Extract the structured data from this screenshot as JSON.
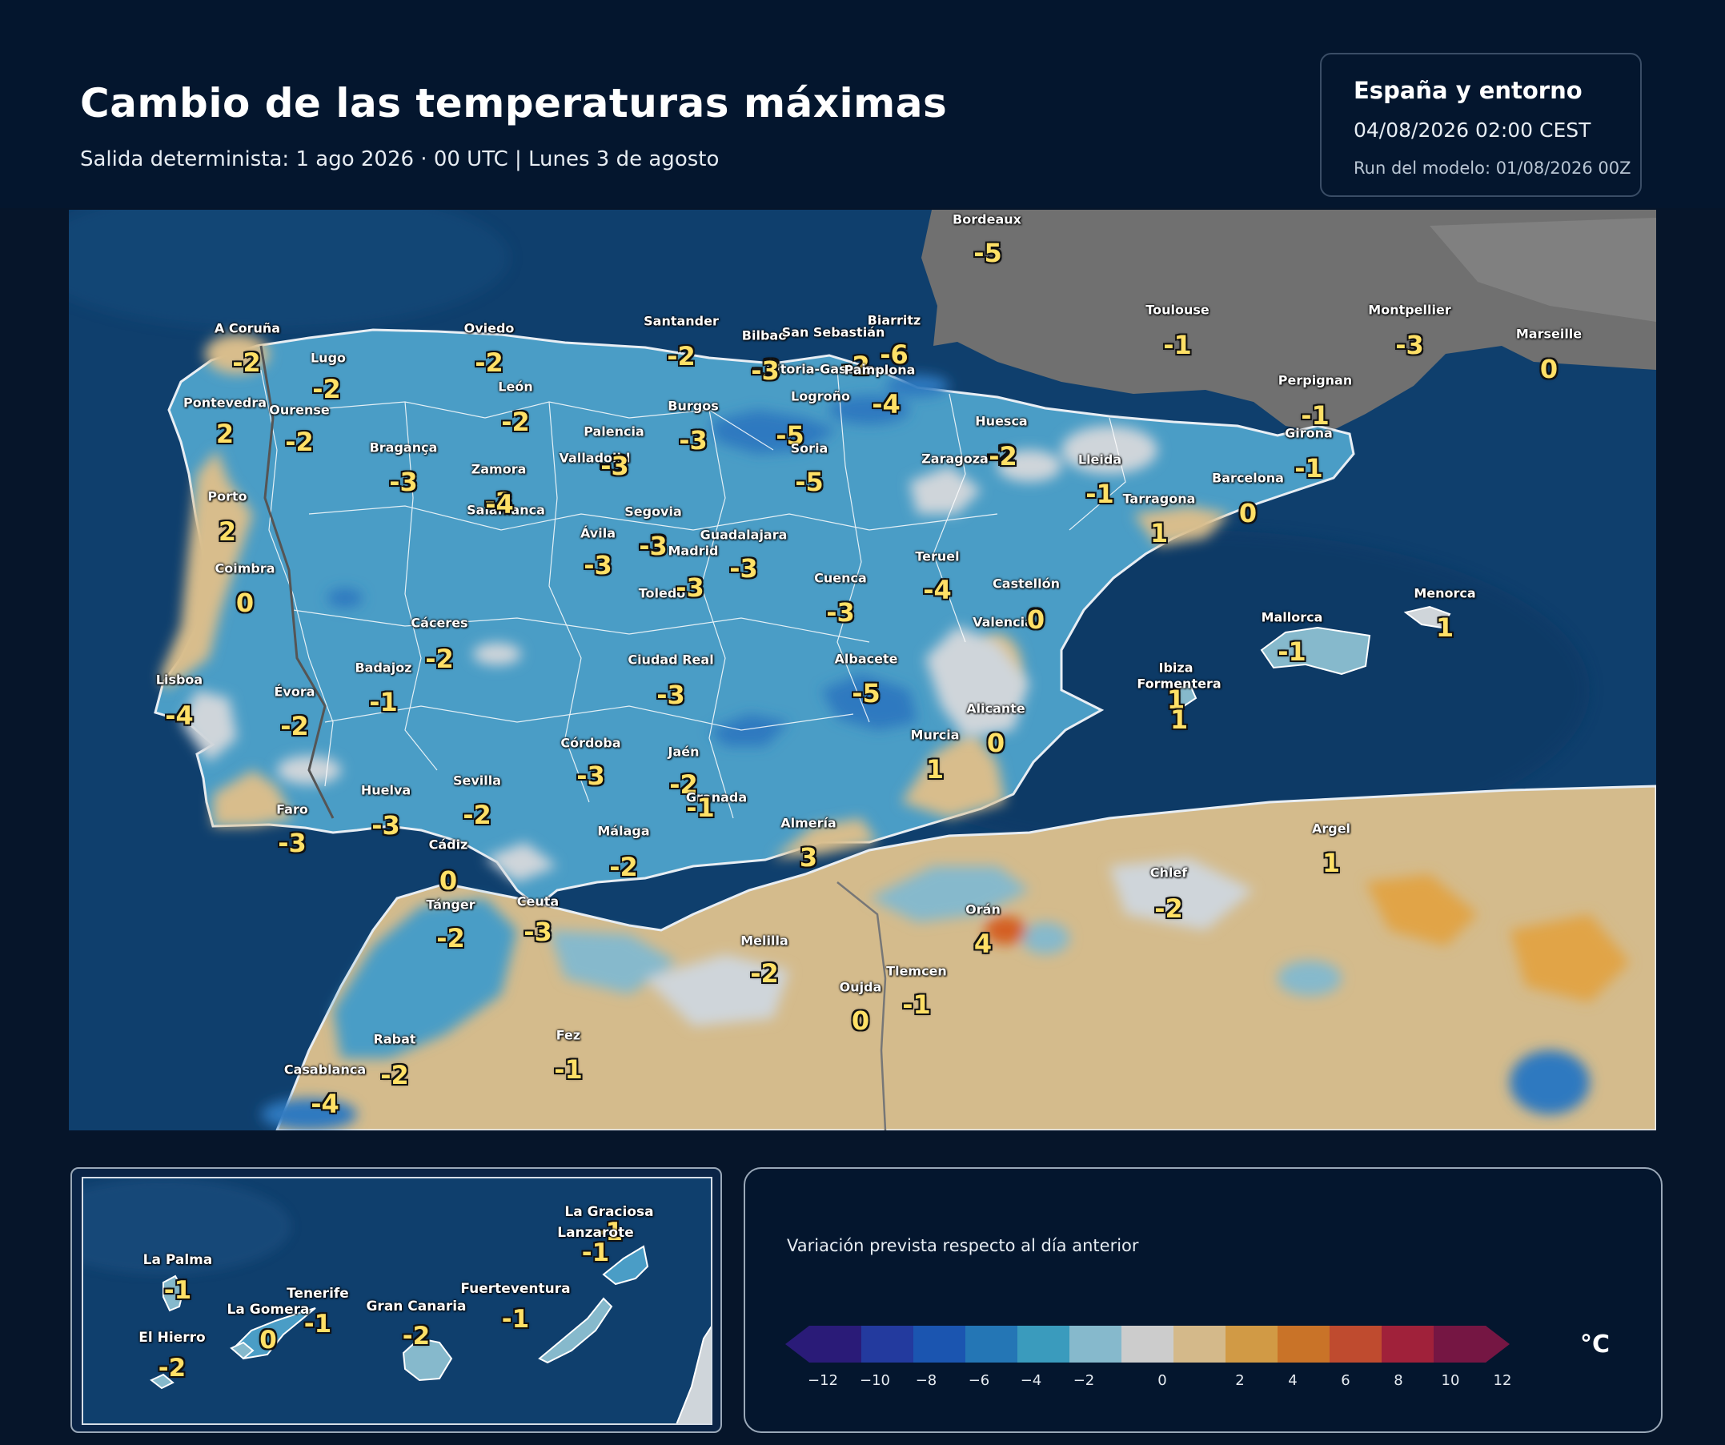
{
  "header": {
    "title": "Cambio de las temperaturas máximas",
    "subtitle": "Salida determinista: 1 ago 2026 · 00 UTC  |  Lunes 3 de agosto"
  },
  "info": {
    "region": "España y entorno",
    "valid": "04/08/2026  02:00 CEST",
    "run": "Run del modelo: 01/08/2026 00Z"
  },
  "colors": {
    "sea": "#0e3e6c",
    "land_cool": "#4a9cc4",
    "france": "#6e6e6e",
    "value_text": "#ffe066"
  },
  "map": {
    "cities": [
      {
        "name": "Bordeaux",
        "value": "-5"
      },
      {
        "name": "A Coruña",
        "value": "-2"
      },
      {
        "name": "Lugo",
        "value": "-2"
      },
      {
        "name": "Oviedo",
        "value": "-2"
      },
      {
        "name": "Santander",
        "value": "-2"
      },
      {
        "name": "Bilbao",
        "value": "-3"
      },
      {
        "name": "San Sebastián",
        "value": "-2"
      },
      {
        "name": "Biarritz",
        "value": "-6"
      },
      {
        "name": "Vitoria-Gasteiz",
        "value": "-3"
      },
      {
        "name": "Pamplona",
        "value": "-4"
      },
      {
        "name": "Toulouse",
        "value": "-1"
      },
      {
        "name": "Montpellier",
        "value": "-3"
      },
      {
        "name": "Marseille",
        "value": "0"
      },
      {
        "name": "Pontevedra",
        "value": "2"
      },
      {
        "name": "Ourense",
        "value": "-2"
      },
      {
        "name": "León",
        "value": "-2"
      },
      {
        "name": "Burgos",
        "value": "-3"
      },
      {
        "name": "Logroño",
        "value": "-5"
      },
      {
        "name": "Palencia",
        "value": "-3"
      },
      {
        "name": "Perpignan",
        "value": "-1"
      },
      {
        "name": "Huesca",
        "value": "-2"
      },
      {
        "name": "Girona",
        "value": "-1"
      },
      {
        "name": "Bragança",
        "value": "-3"
      },
      {
        "name": "Soria",
        "value": "-5"
      },
      {
        "name": "Valladolid",
        "value": "-3"
      },
      {
        "name": "Zaragoza",
        "value": "-2"
      },
      {
        "name": "Lleida",
        "value": "-1"
      },
      {
        "name": "Zamora",
        "value": "-3"
      },
      {
        "name": "Barcelona",
        "value": "0"
      },
      {
        "name": "Porto",
        "value": "2"
      },
      {
        "name": "Tarragona",
        "value": "1"
      },
      {
        "name": "Salamanca",
        "value": "-4"
      },
      {
        "name": "Segovia",
        "value": "-3"
      },
      {
        "name": "Ávila",
        "value": "-3"
      },
      {
        "name": "Guadalajara",
        "value": "-3"
      },
      {
        "name": "Madrid",
        "value": "-3"
      },
      {
        "name": "Teruel",
        "value": "-4"
      },
      {
        "name": "Coimbra",
        "value": "0"
      },
      {
        "name": "Cuenca",
        "value": "-3"
      },
      {
        "name": "Toledo",
        "value": "-3"
      },
      {
        "name": "Castellón",
        "value": "0"
      },
      {
        "name": "Menorca",
        "value": "1"
      },
      {
        "name": "Mallorca",
        "value": "-1"
      },
      {
        "name": "Cáceres",
        "value": "-2"
      },
      {
        "name": "Valencia",
        "value": "0"
      },
      {
        "name": "Ciudad Real",
        "value": "-3"
      },
      {
        "name": "Badajoz",
        "value": "-1"
      },
      {
        "name": "Albacete",
        "value": "-5"
      },
      {
        "name": "Ibiza",
        "value": "1"
      },
      {
        "name": "Formentera",
        "value": "1"
      },
      {
        "name": "Lisboa",
        "value": "-4"
      },
      {
        "name": "Évora",
        "value": "-2"
      },
      {
        "name": "Alicante",
        "value": "0"
      },
      {
        "name": "Murcia",
        "value": "1"
      },
      {
        "name": "Córdoba",
        "value": "-3"
      },
      {
        "name": "Jaén",
        "value": "-2"
      },
      {
        "name": "Sevilla",
        "value": "-2"
      },
      {
        "name": "Huelva",
        "value": "-3"
      },
      {
        "name": "Granada",
        "value": "-1"
      },
      {
        "name": "Faro",
        "value": "-3"
      },
      {
        "name": "Almería",
        "value": "3"
      },
      {
        "name": "Málaga",
        "value": "-2"
      },
      {
        "name": "Argel",
        "value": "1"
      },
      {
        "name": "Cádiz",
        "value": "0"
      },
      {
        "name": "Chlef",
        "value": "-2"
      },
      {
        "name": "Tánger",
        "value": "-2"
      },
      {
        "name": "Ceuta",
        "value": "-3"
      },
      {
        "name": "Orán",
        "value": "4"
      },
      {
        "name": "Melilla",
        "value": "-2"
      },
      {
        "name": "Tlemcen",
        "value": "-1"
      },
      {
        "name": "Oujda",
        "value": "0"
      },
      {
        "name": "Rabat",
        "value": "-2"
      },
      {
        "name": "Fez",
        "value": "-1"
      },
      {
        "name": "Casablanca",
        "value": "-4"
      }
    ]
  },
  "canarias": [
    {
      "name": "La Graciosa",
      "value": "-1"
    },
    {
      "name": "Lanzarote",
      "value": "-1"
    },
    {
      "name": "La Palma",
      "value": "-1"
    },
    {
      "name": "Tenerife",
      "value": "-1"
    },
    {
      "name": "Fuerteventura",
      "value": "-1"
    },
    {
      "name": "La Gomera",
      "value": "0"
    },
    {
      "name": "Gran Canaria",
      "value": "-2"
    },
    {
      "name": "El Hierro",
      "value": "-2"
    }
  ],
  "legend": {
    "caption": "Variación prevista respecto al día anterior",
    "unit": "°C",
    "ticks": [
      "−12",
      "−10",
      "−8",
      "−6",
      "−4",
      "−2",
      "0",
      "2",
      "4",
      "6",
      "8",
      "10",
      "12"
    ],
    "colors": [
      "#2a1b78",
      "#233a9e",
      "#1b55b0",
      "#2476b5",
      "#3a9bbd",
      "#86b9cc",
      "#cccccc",
      "#d4b98a",
      "#d19a45",
      "#c97328",
      "#bf4b2f",
      "#a0213a",
      "#751643"
    ]
  }
}
